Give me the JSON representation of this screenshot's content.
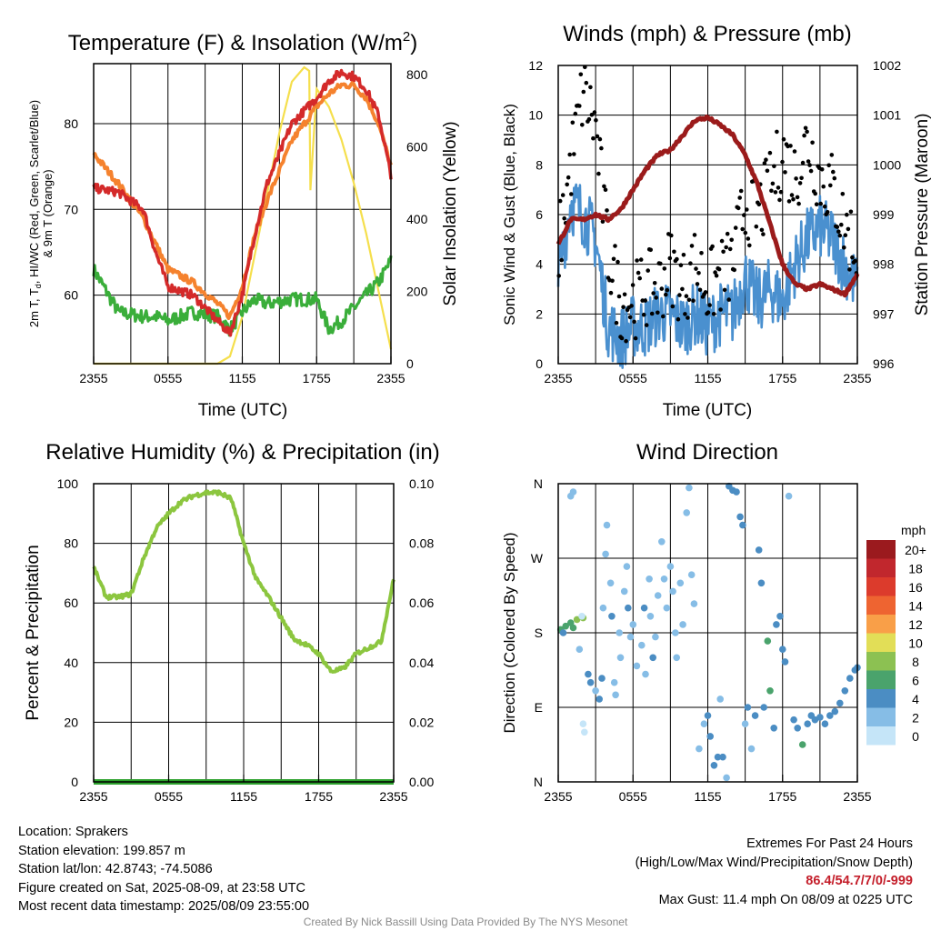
{
  "time_ticks": [
    "2355",
    "0555",
    "1155",
    "1755",
    "2355"
  ],
  "panel_temperature": {
    "title_main": "Temperature (F) & Insolation (W/m",
    "title_sup": "2",
    "title_end": ")",
    "ylabel_left_line1": "2m T, T",
    "ylabel_left_sub": "d",
    "ylabel_left_rest": ", HI/WC (Red, Green, Scarlet/Blue)",
    "ylabel_left_line2": "& 9m T (Orange)",
    "ylabel_right": "Solar Insolation (Yellow)",
    "xlabel": "Time (UTC)",
    "left_ticks": [
      "60",
      "70",
      "80"
    ],
    "right_ticks": [
      "0",
      "200",
      "400",
      "600",
      "800"
    ]
  },
  "panel_winds": {
    "title": "Winds (mph) & Pressure (mb)",
    "ylabel_left": "Sonic Wind & Gust (Blue, Black)",
    "ylabel_right": "Station Pressure (Maroon)",
    "xlabel": "Time (UTC)",
    "left_ticks": [
      "0",
      "2",
      "4",
      "6",
      "8",
      "10",
      "12"
    ],
    "right_ticks": [
      "996",
      "997",
      "998",
      "999",
      "1000",
      "1001",
      "1002"
    ]
  },
  "panel_humidity": {
    "title": "Relative Humidity (%) & Precipitation (in)",
    "ylabel_left": "Percent & Precipitation",
    "left_ticks": [
      "0",
      "20",
      "40",
      "60",
      "80",
      "100"
    ],
    "right_ticks": [
      "0.00",
      "0.02",
      "0.04",
      "0.06",
      "0.08",
      "0.10"
    ]
  },
  "panel_direction": {
    "title": "Wind Direction",
    "ylabel_left": "Direction (Colored By Speed)",
    "dir_ticks": [
      "N",
      "E",
      "S",
      "W",
      "N"
    ],
    "legend_title": "mph",
    "legend_labels": [
      "20+",
      "18",
      "16",
      "14",
      "12",
      "10",
      "8",
      "6",
      "4",
      "2",
      "0"
    ],
    "legend_colors": [
      "#9b1a1e",
      "#c1272d",
      "#dc3b2c",
      "#ee6431",
      "#f99f48",
      "#e2de57",
      "#8cc152",
      "#4aa36c",
      "#4b8dc3",
      "#86bde6",
      "#c5e5f8"
    ]
  },
  "colors": {
    "air_temp": "#d42a2a",
    "dewpoint": "#3aae3a",
    "temp_9m": "#f5822e",
    "insolation": "#f5df4d",
    "wind": "#4a90cf",
    "gust": "#000000",
    "pressure": "#9b1b1b",
    "humidity": "#8cc63f",
    "precip": "#2ca02c"
  },
  "info": {
    "location": "Location: Sprakers",
    "elevation": "Station elevation: 199.857 m",
    "latlon": "Station lat/lon: 42.8743; -74.5086",
    "created": "Figure created on Sat, 2025-08-09, at 23:58 UTC",
    "recent": "Most recent data timestamp: 2025/08/09 23:55:00"
  },
  "extremes": {
    "title": "Extremes For Past 24 Hours",
    "subtitle": "(High/Low/Max Wind/Precipitation/Snow Depth)",
    "values": "86.4/54.7/7/0/-999",
    "max_gust": "Max Gust: 11.4 mph On 08/09 at 0225 UTC"
  },
  "credit": "Created By Nick Bassill Using Data Provided By The NYS Mesonet",
  "chart_data": [
    {
      "type": "line",
      "title": "Temperature (F) & Insolation (W/m2)",
      "xlabel": "Time (UTC)",
      "x_hours": [
        0,
        2,
        4,
        5,
        6,
        8,
        10,
        11,
        12,
        13,
        14,
        16,
        18,
        19,
        20,
        21,
        22,
        23,
        24
      ],
      "series": [
        {
          "name": "2m T (Red)",
          "axis": "left",
          "values": [
            72.5,
            72,
            70,
            65,
            61,
            60,
            57,
            55.5,
            60,
            67,
            73,
            80,
            83,
            85,
            86,
            85.5,
            84,
            81,
            74
          ]
        },
        {
          "name": "Td (Green)",
          "axis": "left",
          "values": [
            63,
            58,
            57.5,
            57.5,
            57,
            58,
            57.5,
            56,
            58,
            59.5,
            59,
            59.5,
            59.5,
            56,
            57,
            58.5,
            60,
            61.5,
            64
          ]
        },
        {
          "name": "9m T (Orange)",
          "axis": "left",
          "values": [
            76.5,
            73,
            69,
            66,
            63,
            61.5,
            59,
            57.5,
            61,
            67,
            71,
            78,
            82,
            83.5,
            84.5,
            84.5,
            83,
            80,
            75
          ]
        }
      ],
      "insolation": {
        "axis": "right",
        "x_hours": [
          0,
          9,
          10,
          11,
          12,
          13,
          14,
          15,
          16,
          17,
          17.4,
          17.5,
          18,
          19,
          20,
          21,
          22,
          23,
          24
        ],
        "values": [
          0,
          0,
          0,
          20,
          130,
          300,
          470,
          640,
          780,
          820,
          810,
          480,
          760,
          710,
          620,
          500,
          360,
          200,
          40
        ]
      },
      "ylim_left": [
        52,
        87
      ],
      "ylim_right": [
        0,
        830
      ]
    },
    {
      "type": "line",
      "title": "Winds (mph) & Pressure (mb)",
      "xlabel": "Time (UTC)",
      "x_hours": [
        0,
        1,
        2,
        3,
        4,
        5,
        6,
        7,
        8,
        9,
        10,
        11,
        12,
        13,
        14,
        15,
        16,
        17,
        18,
        19,
        20,
        21,
        22,
        23,
        24
      ],
      "series": [
        {
          "name": "Sonic Wind (Blue)",
          "axis": "left",
          "values": [
            3.5,
            6.5,
            6,
            5,
            1.5,
            1,
            1.5,
            1.5,
            2,
            2,
            1.5,
            2,
            1.5,
            2,
            2,
            3.5,
            2.5,
            3,
            2.5,
            4,
            5,
            5.5,
            5,
            4,
            3
          ]
        },
        {
          "name": "Gust (Black)",
          "axis": "left",
          "values": [
            4.5,
            8,
            11,
            9.5,
            4.5,
            2.5,
            2.5,
            3,
            3,
            4,
            3,
            4,
            3,
            3.5,
            4,
            6.5,
            6,
            7,
            8.5,
            7.5,
            9,
            7.5,
            7,
            5.5,
            4.5
          ]
        },
        {
          "name": "Station Pressure (Maroon)",
          "axis": "right",
          "values": [
            998.4,
            998.9,
            998.9,
            999,
            998.9,
            999.1,
            999.5,
            999.9,
            1000.2,
            1000.3,
            1000.6,
            1000.9,
            1000.95,
            1000.8,
            1000.6,
            1000.2,
            999.6,
            998.8,
            998.0,
            997.6,
            997.5,
            997.6,
            997.5,
            997.4,
            997.8
          ]
        }
      ],
      "ylim_left": [
        0,
        12
      ],
      "ylim_right": [
        996,
        1002
      ]
    },
    {
      "type": "line",
      "title": "Relative Humidity (%) & Precipitation (in)",
      "ylabel": "Percent & Precipitation",
      "x_hours": [
        0,
        1,
        2,
        3,
        4,
        5,
        6,
        7,
        8,
        9,
        10,
        11,
        12,
        13,
        14,
        15,
        16,
        17,
        18,
        19,
        20,
        21,
        22,
        23,
        24
      ],
      "series": [
        {
          "name": "Relative Humidity",
          "axis": "left",
          "values": [
            72,
            62,
            62,
            63,
            75,
            85,
            90,
            94,
            96,
            97,
            97,
            95,
            80,
            68,
            62,
            55,
            48,
            46,
            43,
            37,
            38,
            43,
            45,
            47,
            68
          ]
        },
        {
          "name": "Precipitation",
          "axis": "right",
          "values": [
            0,
            0,
            0,
            0,
            0,
            0,
            0,
            0,
            0,
            0,
            0,
            0,
            0,
            0,
            0,
            0,
            0,
            0,
            0,
            0,
            0,
            0,
            0,
            0,
            0
          ]
        }
      ],
      "ylim_left": [
        0,
        100
      ],
      "ylim_right": [
        0,
        0.1
      ]
    },
    {
      "type": "scatter",
      "title": "Wind Direction",
      "ylabel": "Direction (Colored By Speed)",
      "direction_axis": [
        "N",
        "E",
        "S",
        "W",
        "N"
      ],
      "points_hour_deg_speed": [
        [
          0.2,
          184,
          5
        ],
        [
          0.6,
          188,
          6
        ],
        [
          1.0,
          192,
          6
        ],
        [
          1.5,
          196,
          7
        ],
        [
          2.0,
          198,
          7
        ],
        [
          1.2,
          186,
          5
        ],
        [
          0.4,
          180,
          4
        ],
        [
          1.0,
          345,
          1
        ],
        [
          1.2,
          350,
          2
        ],
        [
          1.7,
          160,
          1
        ],
        [
          1.9,
          200,
          0
        ],
        [
          2.0,
          70,
          0
        ],
        [
          2.1,
          60,
          0
        ],
        [
          2.4,
          130,
          3
        ],
        [
          2.6,
          120,
          4
        ],
        [
          3.0,
          110,
          2
        ],
        [
          3.3,
          100,
          4
        ],
        [
          3.5,
          125,
          3
        ],
        [
          3.6,
          210,
          2
        ],
        [
          3.8,
          275,
          1
        ],
        [
          3.9,
          310,
          1
        ],
        [
          4.2,
          240,
          2
        ],
        [
          4.3,
          200,
          3
        ],
        [
          4.5,
          120,
          1
        ],
        [
          4.6,
          105,
          2
        ],
        [
          4.9,
          180,
          2
        ],
        [
          5.0,
          150,
          1
        ],
        [
          5.3,
          230,
          2
        ],
        [
          5.5,
          260,
          1
        ],
        [
          5.6,
          210,
          4
        ],
        [
          5.8,
          175,
          2
        ],
        [
          6.0,
          190,
          1
        ],
        [
          6.3,
          140,
          2
        ],
        [
          6.7,
          165,
          1
        ],
        [
          6.9,
          210,
          3
        ],
        [
          7.0,
          130,
          2
        ],
        [
          7.3,
          245,
          2
        ],
        [
          7.4,
          200,
          1
        ],
        [
          7.6,
          150,
          3
        ],
        [
          7.8,
          175,
          2
        ],
        [
          8.0,
          225,
          1
        ],
        [
          8.3,
          290,
          1
        ],
        [
          8.5,
          245,
          2
        ],
        [
          8.7,
          210,
          2
        ],
        [
          9.0,
          260,
          1
        ],
        [
          9.2,
          230,
          2
        ],
        [
          9.4,
          180,
          2
        ],
        [
          9.5,
          150,
          1
        ],
        [
          9.8,
          240,
          2
        ],
        [
          10.0,
          190,
          1
        ],
        [
          10.3,
          325,
          1
        ],
        [
          10.5,
          355,
          1
        ],
        [
          10.7,
          250,
          2
        ],
        [
          10.9,
          215,
          1
        ],
        [
          11.3,
          40,
          2
        ],
        [
          11.7,
          70,
          1
        ],
        [
          12.0,
          80,
          3
        ],
        [
          12.2,
          55,
          3
        ],
        [
          12.5,
          20,
          4
        ],
        [
          12.8,
          30,
          3
        ],
        [
          13.0,
          100,
          2
        ],
        [
          13.2,
          30,
          3
        ],
        [
          13.5,
          5,
          2
        ],
        [
          13.7,
          357,
          4
        ],
        [
          14.0,
          352,
          4
        ],
        [
          14.3,
          350,
          4
        ],
        [
          14.6,
          320,
          4
        ],
        [
          14.8,
          310,
          4
        ],
        [
          15.0,
          70,
          2
        ],
        [
          15.2,
          90,
          3
        ],
        [
          15.5,
          40,
          1
        ],
        [
          15.8,
          80,
          3
        ],
        [
          16.1,
          280,
          4
        ],
        [
          16.3,
          240,
          4
        ],
        [
          16.5,
          90,
          3
        ],
        [
          16.8,
          170,
          6
        ],
        [
          17.0,
          110,
          5
        ],
        [
          17.3,
          65,
          4
        ],
        [
          17.5,
          190,
          4
        ],
        [
          17.8,
          200,
          4
        ],
        [
          18.0,
          160,
          4
        ],
        [
          18.2,
          145,
          4
        ],
        [
          18.5,
          345,
          1
        ],
        [
          18.9,
          75,
          4
        ],
        [
          19.2,
          65,
          4
        ],
        [
          19.6,
          45,
          6
        ],
        [
          20.0,
          70,
          4
        ],
        [
          20.3,
          80,
          4
        ],
        [
          20.6,
          75,
          4
        ],
        [
          21.0,
          78,
          4
        ],
        [
          21.4,
          70,
          3
        ],
        [
          21.8,
          80,
          4
        ],
        [
          22.2,
          85,
          4
        ],
        [
          22.6,
          95,
          3
        ],
        [
          23.0,
          110,
          3
        ],
        [
          23.4,
          125,
          3
        ],
        [
          23.8,
          135,
          3
        ],
        [
          24.0,
          138,
          3
        ]
      ]
    }
  ]
}
